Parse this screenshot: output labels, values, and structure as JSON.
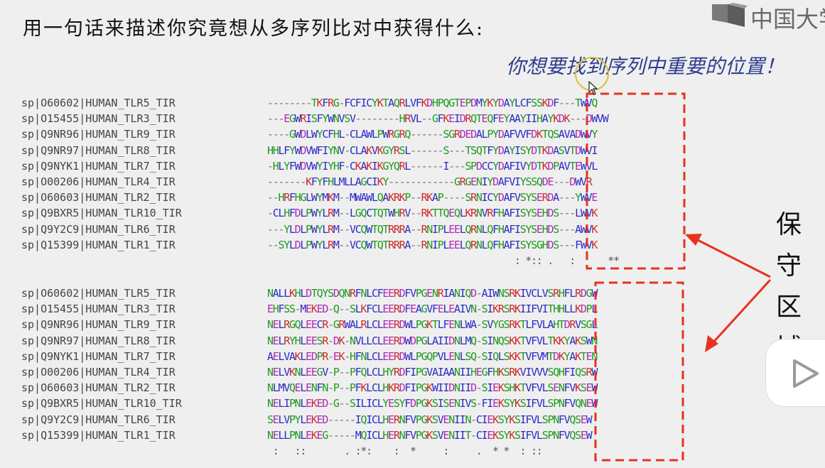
{
  "header": {
    "title": "用一句话来描述你究竟想从多序列比对中获得什么:",
    "subtitle": "你想要找到序列中重要的位置！",
    "logo_text": "中国大学"
  },
  "annotation": {
    "label": "保守区域"
  },
  "colors": {
    "A": "#2a2ac8",
    "I": "#2a2ac8",
    "L": "#2a2ac8",
    "M": "#2a2ac8",
    "F": "#2a2ac8",
    "W": "#2a2ac8",
    "V": "#2a2ac8",
    "C": "#2a2ac8",
    "K": "#cc2a2a",
    "R": "#cc2a2a",
    "D": "#b02ab0",
    "E": "#b02ab0",
    "N": "#1e9a1e",
    "Q": "#1e9a1e",
    "S": "#1e9a1e",
    "T": "#1e9a1e",
    "G": "#1e9a1e",
    "H": "#1e9a1e",
    "Y": "#1e9a1e",
    "P": "#1e9a1e",
    "-": "#777777",
    "highlight_box": "#e8311f",
    "arrow": "#e8311f"
  },
  "blocks": [
    {
      "rows": [
        {
          "label": "sp|O60602|HUMAN_TLR5_TIR",
          "seq": "--------TKFRG-FCFICYKTAQRLVFKDHPQGTEPDMYKYDAYLCFSSKDF---TWVQ"
        },
        {
          "label": "sp|O15455|HUMAN_TLR3_TIR",
          "seq": "---EGWRISFYWNVSV--------HRVL--GFKEIDRQTEQFEYAAYIIHAYKDK---DWVW"
        },
        {
          "label": "sp|Q9NR96|HUMAN_TLR9_TIR",
          "seq": "----GWDLWYCFHL-CLAWLPWRGRQ------SGRDEDALPYDAFVVFDKTQSAVADWVY"
        },
        {
          "label": "sp|Q9NR97|HUMAN_TLR8_TIR",
          "seq": "HHLFYWDVWFIYNV-CLAKVKGYRSL------S---TSQTFYDAYISYDTKDASVTDWVI"
        },
        {
          "label": "sp|Q9NYK1|HUMAN_TLR7_TIR",
          "seq": "-HLYFWDVWYIYHF-CKAKIKGYQRL------I---SPDCCYDAFIVYDTKDPAVTEWVL"
        },
        {
          "label": "sp|O00206|HUMAN_TLR4_TIR",
          "seq": "-------KFYFHLMLLAGCIKY------------GRGENIYDAFVIYSSQDE---DWVR"
        },
        {
          "label": "sp|O60603|HUMAN_TLR2_TIR",
          "seq": "--HRFHGLWYMKM--MWAWLQAKRKP--RKAP----SRNICYDAFVSYSERDA---YWVE"
        },
        {
          "label": "sp|Q9BXR5|HUMAN_TLR10_TIR",
          "seq": "-CLHFDLPWYLRM--LGQCTQTWHRV--RKTTQEQLKRNVRFHAFISYSEHDS---LWVK"
        },
        {
          "label": "sp|Q9Y2C9|HUMAN_TLR6_TIR",
          "seq": "---YLDLPWYLRM--VCQWTQTRRRA--RNIPLEELQRNLQFHAFISYSEHDS---AWVK"
        },
        {
          "label": "sp|Q15399|HUMAN_TLR1_TIR",
          "seq": "--SYLDLPWYLRM--VCQWTQTRRRA--RNIPLEELQRNLQFHAFISYSGHDS---FWVK"
        }
      ],
      "consensus": "                                             : *:: .   :      **"
    },
    {
      "rows": [
        {
          "label": "sp|O60602|HUMAN_TLR5_TIR",
          "seq": "NALLKHLDTQYSDQNRFNLCFEERDFVPGENRIANIQD-AIWNSRKIVCLVSRHFLRDGW"
        },
        {
          "label": "sp|O15455|HUMAN_TLR3_TIR",
          "seq": "EHFSS-MEKED-Q--SLKFCLEERDFEAGVFELEAIVN-SIKRSRKIIFVITHHLLKDPL"
        },
        {
          "label": "sp|Q9NR96|HUMAN_TLR9_TIR",
          "seq": "NELRGQLEECR-GRWALRLCLEERDWLPGKTLFENLWA-SVYGSRKTLFVLAHTDRVSGL"
        },
        {
          "label": "sp|Q9NR97|HUMAN_TLR8_TIR",
          "seq": "NELRYHLEESR-DK-NVLLCLEERDWDPGLAIIDNLMQ-SINQSKKTVFVLTKKYAKSWN"
        },
        {
          "label": "sp|Q9NYK1|HUMAN_TLR7_TIR",
          "seq": "AELVAKLEDPR-EK-HFNLCLEERDWLPGQPVLENLSQ-SIQLSKKTVFVMTDKYAKTEN"
        },
        {
          "label": "sp|O00206|HUMAN_TLR4_TIR",
          "seq": "NELVKNLEEGV-P--PFQLCLHYRDFIPGVAIAANIIHEGFHKSRKVIVVVSQHFIQSRW"
        },
        {
          "label": "sp|O60603|HUMAN_TLR2_TIR",
          "seq": "NLMVQELENFN-P--PFKLCLHKRDFIPGKWIIDNIID-SIEKSHKTVFVLSENFVKSEW"
        },
        {
          "label": "sp|Q9BXR5|HUMAN_TLR10_TIR",
          "seq": "NELIPNLEKED-G--SILICLYESYFDPGKSISENIVS-FIEKSYKSIFVLSPNFVQNEW"
        },
        {
          "label": "sp|Q9Y2C9|HUMAN_TLR6_TIR",
          "seq": "SELVPYLEKED-----IQICLHERNFVPGKSVENIIN-CIEKSYKSIFVLSPNFVQSEW"
        },
        {
          "label": "sp|Q15399|HUMAN_TLR1_TIR",
          "seq": "NELLPNLEKEG-----MQICLHERNFVPGKSVENIIT-CIEKSYKSIFVLSPNFVQSEW"
        }
      ],
      "consensus": " :   ::       . :*:    :  *     :     .  * *  : ::"
    }
  ]
}
